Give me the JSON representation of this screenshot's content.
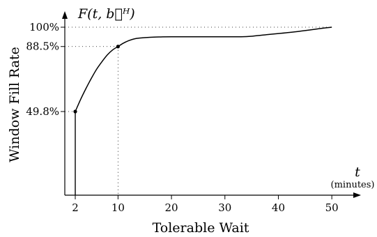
{
  "chart_data": {
    "type": "line",
    "function_label": "F(t, b⃗ᴴ)",
    "xlabel": "Tolerable Wait",
    "ylabel": "Window Fill Rate",
    "x_axis_symbol": "t",
    "x_axis_unit": "(minutes)",
    "x_ticks": [
      2,
      10,
      20,
      30,
      40,
      50
    ],
    "y_ticks": [
      {
        "value": 49.8,
        "label": "49.8%"
      },
      {
        "value": 88.5,
        "label": "88.5%"
      },
      {
        "value": 100,
        "label": "100%"
      }
    ],
    "xlim": [
      0,
      53
    ],
    "ylim": [
      0,
      103
    ],
    "grid": "dotted reference lines at labeled values",
    "series": [
      {
        "x": [
          2,
          3,
          4,
          5,
          6,
          7,
          8,
          9,
          10,
          11,
          12,
          13,
          14,
          16,
          18,
          20,
          25,
          30,
          33,
          35,
          37,
          40,
          43,
          46,
          48,
          50
        ],
        "y": [
          49.8,
          57,
          63.5,
          69.5,
          75,
          79.5,
          83.5,
          86.5,
          88.5,
          90.5,
          92,
          93,
          93.5,
          94,
          94.2,
          94.3,
          94.3,
          94.3,
          94.3,
          94.6,
          95.3,
          96.2,
          97.2,
          98.4,
          99.3,
          100
        ]
      }
    ],
    "highlighted_points": [
      {
        "x": 2,
        "y": 49.8
      },
      {
        "x": 10,
        "y": 88.5
      }
    ]
  }
}
